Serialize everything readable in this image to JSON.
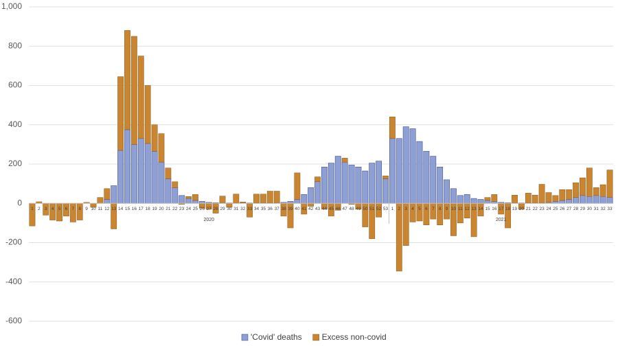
{
  "chart_data": {
    "type": "bar",
    "stacked": true,
    "categories": [
      "1",
      "2",
      "3",
      "4",
      "5",
      "6",
      "7",
      "8",
      "9",
      "10",
      "11",
      "12",
      "13",
      "14",
      "15",
      "16",
      "17",
      "18",
      "19",
      "20",
      "21",
      "22",
      "23",
      "24",
      "25",
      "26",
      "27",
      "28",
      "29",
      "30",
      "31",
      "32",
      "33",
      "34",
      "35",
      "36",
      "37",
      "38",
      "39",
      "40",
      "41",
      "42",
      "43",
      "44",
      "45",
      "46",
      "47",
      "48",
      "49",
      "50",
      "51",
      "52",
      "53",
      "1",
      "2",
      "3",
      "4",
      "5",
      "6",
      "7",
      "8",
      "9",
      "10",
      "11",
      "12",
      "13",
      "14",
      "15",
      "16",
      "17",
      "18",
      "19",
      "20",
      "21",
      "22",
      "23",
      "24",
      "25",
      "26",
      "27",
      "28",
      "29",
      "30",
      "31",
      "32",
      "33"
    ],
    "x_groups": [
      "2020",
      "2021"
    ],
    "series": [
      {
        "name": "'Covid' deaths",
        "color": "#8e9fd6",
        "values": [
          0,
          0,
          0,
          0,
          0,
          0,
          0,
          0,
          0,
          0,
          0,
          20,
          90,
          270,
          375,
          300,
          330,
          305,
          265,
          210,
          125,
          80,
          40,
          25,
          15,
          10,
          5,
          3,
          2,
          2,
          2,
          2,
          2,
          2,
          2,
          2,
          2,
          5,
          10,
          20,
          45,
          80,
          110,
          185,
          205,
          240,
          210,
          195,
          185,
          165,
          205,
          215,
          125,
          330,
          330,
          390,
          380,
          315,
          265,
          240,
          185,
          120,
          75,
          40,
          45,
          25,
          20,
          15,
          10,
          5,
          3,
          2,
          2,
          2,
          2,
          2,
          5,
          10,
          15,
          20,
          30,
          40,
          35,
          40,
          35,
          30
        ]
      },
      {
        "name": "Excess non-covid",
        "color": "#c9852f",
        "values": [
          -115,
          8,
          -60,
          -85,
          -90,
          -65,
          -95,
          -85,
          5,
          -20,
          30,
          55,
          -130,
          375,
          505,
          550,
          420,
          295,
          135,
          145,
          55,
          30,
          -5,
          10,
          30,
          -25,
          -30,
          -50,
          35,
          -20,
          45,
          5,
          -70,
          45,
          45,
          60,
          60,
          -65,
          -125,
          135,
          -55,
          -15,
          25,
          -30,
          -65,
          -35,
          20,
          -5,
          -30,
          -120,
          -180,
          -70,
          15,
          110,
          -345,
          -215,
          -95,
          -90,
          -110,
          -80,
          -110,
          -80,
          -165,
          -100,
          -75,
          -170,
          -65,
          15,
          35,
          -55,
          -125,
          40,
          -30,
          50,
          40,
          95,
          50,
          30,
          55,
          50,
          75,
          90,
          145,
          40,
          60,
          140
        ]
      }
    ],
    "ylim": [
      -600,
      1000
    ],
    "yticks": [
      -600,
      -400,
      -200,
      0,
      200,
      400,
      600,
      800,
      {
        "value": 1000,
        "label": "1,000"
      }
    ],
    "grid": true,
    "legend": "bottom"
  }
}
